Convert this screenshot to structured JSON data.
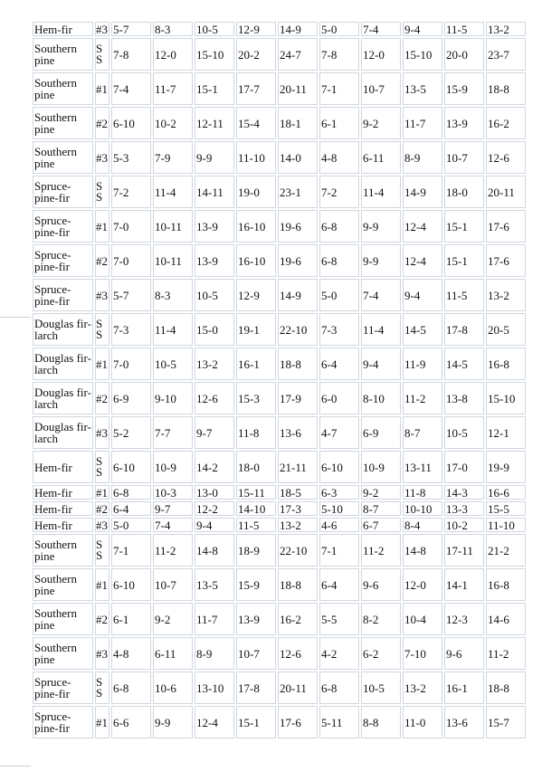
{
  "rows": [
    {
      "species": "Hem-fir",
      "grade": "#3",
      "values": [
        "5-7",
        "8-3",
        "10-5",
        "12-9",
        "14-9",
        "5-0",
        "7-4",
        "9-4",
        "11-5",
        "13-2"
      ]
    },
    {
      "species": "Southern pine",
      "grade": "SS",
      "values": [
        "7-8",
        "12-0",
        "15-10",
        "20-2",
        "24-7",
        "7-8",
        "12-0",
        "15-10",
        "20-0",
        "23-7"
      ]
    },
    {
      "species": "Southern pine",
      "grade": "#1",
      "values": [
        "7-4",
        "11-7",
        "15-1",
        "17-7",
        "20-11",
        "7-1",
        "10-7",
        "13-5",
        "15-9",
        "18-8"
      ]
    },
    {
      "species": "Southern pine",
      "grade": "#2",
      "values": [
        "6-10",
        "10-2",
        "12-11",
        "15-4",
        "18-1",
        "6-1",
        "9-2",
        "11-7",
        "13-9",
        "16-2"
      ]
    },
    {
      "species": "Southern pine",
      "grade": "#3",
      "values": [
        "5-3",
        "7-9",
        "9-9",
        "11-10",
        "14-0",
        "4-8",
        "6-11",
        "8-9",
        "10-7",
        "12-6"
      ]
    },
    {
      "species": "Spruce-pine-fir",
      "grade": "SS",
      "values": [
        "7-2",
        "11-4",
        "14-11",
        "19-0",
        "23-1",
        "7-2",
        "11-4",
        "14-9",
        "18-0",
        "20-11"
      ]
    },
    {
      "species": "Spruce-pine-fir",
      "grade": "#1",
      "values": [
        "7-0",
        "10-11",
        "13-9",
        "16-10",
        "19-6",
        "6-8",
        "9-9",
        "12-4",
        "15-1",
        "17-6"
      ]
    },
    {
      "species": "Spruce-pine-fir",
      "grade": "#2",
      "values": [
        "7-0",
        "10-11",
        "13-9",
        "16-10",
        "19-6",
        "6-8",
        "9-9",
        "12-4",
        "15-1",
        "17-6"
      ]
    },
    {
      "species": "Spruce-pine-fir",
      "grade": "#3",
      "values": [
        "5-7",
        "8-3",
        "10-5",
        "12-9",
        "14-9",
        "5-0",
        "7-4",
        "9-4",
        "11-5",
        "13-2"
      ]
    },
    {
      "species": "Douglas fir-larch",
      "grade": "SS",
      "values": [
        "7-3",
        "11-4",
        "15-0",
        "19-1",
        "22-10",
        "7-3",
        "11-4",
        "14-5",
        "17-8",
        "20-5"
      ]
    },
    {
      "species": "Douglas fir-larch",
      "grade": "#1",
      "values": [
        "7-0",
        "10-5",
        "13-2",
        "16-1",
        "18-8",
        "6-4",
        "9-4",
        "11-9",
        "14-5",
        "16-8"
      ]
    },
    {
      "species": "Douglas fir-larch",
      "grade": "#2",
      "values": [
        "6-9",
        "9-10",
        "12-6",
        "15-3",
        "17-9",
        "6-0",
        "8-10",
        "11-2",
        "13-8",
        "15-10"
      ]
    },
    {
      "species": "Douglas fir-larch",
      "grade": "#3",
      "values": [
        "5-2",
        "7-7",
        "9-7",
        "11-8",
        "13-6",
        "4-7",
        "6-9",
        "8-7",
        "10-5",
        "12-1"
      ]
    },
    {
      "species": "Hem-fir",
      "grade": "SS",
      "values": [
        "6-10",
        "10-9",
        "14-2",
        "18-0",
        "21-11",
        "6-10",
        "10-9",
        "13-11",
        "17-0",
        "19-9"
      ]
    },
    {
      "species": "Hem-fir",
      "grade": "#1",
      "values": [
        "6-8",
        "10-3",
        "13-0",
        "15-11",
        "18-5",
        "6-3",
        "9-2",
        "11-8",
        "14-3",
        "16-6"
      ]
    },
    {
      "species": "Hem-fir",
      "grade": "#2",
      "values": [
        "6-4",
        "9-7",
        "12-2",
        "14-10",
        "17-3",
        "5-10",
        "8-7",
        "10-10",
        "13-3",
        "15-5"
      ]
    },
    {
      "species": "Hem-fir",
      "grade": "#3",
      "values": [
        "5-0",
        "7-4",
        "9-4",
        "11-5",
        "13-2",
        "4-6",
        "6-7",
        "8-4",
        "10-2",
        "11-10"
      ]
    },
    {
      "species": "Southern pine",
      "grade": "SS",
      "values": [
        "7-1",
        "11-2",
        "14-8",
        "18-9",
        "22-10",
        "7-1",
        "11-2",
        "14-8",
        "17-11",
        "21-2"
      ]
    },
    {
      "species": "Southern pine",
      "grade": "#1",
      "values": [
        "6-10",
        "10-7",
        "13-5",
        "15-9",
        "18-8",
        "6-4",
        "9-6",
        "12-0",
        "14-1",
        "16-8"
      ]
    },
    {
      "species": "Southern pine",
      "grade": "#2",
      "values": [
        "6-1",
        "9-2",
        "11-7",
        "13-9",
        "16-2",
        "5-5",
        "8-2",
        "10-4",
        "12-3",
        "14-6"
      ]
    },
    {
      "species": "Southern pine",
      "grade": "#3",
      "values": [
        "4-8",
        "6-11",
        "8-9",
        "10-7",
        "12-6",
        "4-2",
        "6-2",
        "7-10",
        "9-6",
        "11-2"
      ]
    },
    {
      "species": "Spruce-pine-fir",
      "grade": "SS",
      "values": [
        "6-8",
        "10-6",
        "13-10",
        "17-8",
        "20-11",
        "6-8",
        "10-5",
        "13-2",
        "16-1",
        "18-8"
      ]
    },
    {
      "species": "Spruce-pine-fir",
      "grade": "#1",
      "values": [
        "6-6",
        "9-9",
        "12-4",
        "15-1",
        "17-6",
        "5-11",
        "8-8",
        "11-0",
        "13-6",
        "15-7"
      ]
    }
  ]
}
